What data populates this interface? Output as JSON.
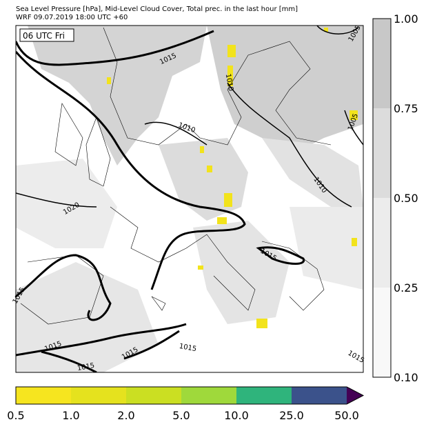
{
  "header": {
    "line1": "Sea Level Pressure [hPa], Mid-Level Cloud Cover, Total prec. in the last hour [mm]",
    "line2": "WRF 09.07.2019 18:00 UTC +60"
  },
  "time_label": "06 UTC Fri",
  "contour_labels": [
    "1015",
    "1010",
    "1010",
    "1010",
    "1005",
    "1005",
    "1020",
    "1015",
    "1015",
    "1015",
    "1015",
    "1015",
    "1015",
    "1015",
    "1015",
    "1010"
  ],
  "cloud_colorbar": {
    "ticks": [
      "1.00",
      "0.75",
      "0.50",
      "0.25",
      "0.10"
    ],
    "colors": [
      "#c8c8c8",
      "#dcdcdc",
      "#ececec",
      "#f8f8f8"
    ]
  },
  "precip_colorbar": {
    "ticks": [
      "0.5",
      "1.0",
      "2.0",
      "5.0",
      "10.0",
      "25.0",
      "50.0"
    ],
    "colors": [
      "#f6e51f",
      "#e5e21e",
      "#cbdf22",
      "#9fd93b",
      "#2fb47c",
      "#3b528b"
    ],
    "extend_color": "#440154"
  }
}
